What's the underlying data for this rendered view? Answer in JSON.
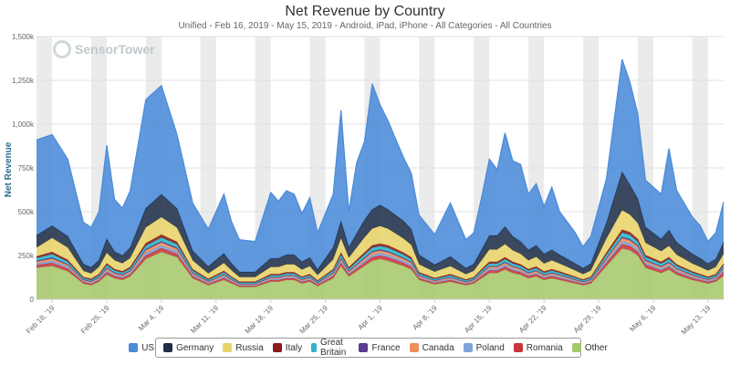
{
  "title": "Net Revenue by Country",
  "subtitle": "Unified - Feb 16, 2019 - May 15, 2019 - Android, iPad, iPhone - All Categories - All Countries",
  "brand": "SensorTower",
  "chart_data": {
    "type": "area",
    "stacked": true,
    "start_date": "2019-02-16",
    "end_date": "2019-05-15",
    "ylabel": "Net Revenue",
    "ylim": [
      0,
      1500000
    ],
    "yticks": [
      "0",
      "250k",
      "500k",
      "750k",
      "1,000k",
      "1,250k",
      "1,500k"
    ],
    "x_tick_labels": [
      "Feb 18, '19",
      "Feb 25, '19",
      "Mar 4, '19",
      "Mar 11, '19",
      "Mar 18, '19",
      "Mar 25, '19",
      "Apr 1, '19",
      "Apr 8, '19",
      "Apr 15, '19",
      "Apr 22, '19",
      "Apr 29, '19",
      "May 6, '19",
      "May 13, '19"
    ],
    "grid": true,
    "weekend_bands": true,
    "legend_position": "bottom",
    "keypoints": [
      {
        "d": 0,
        "t": 910000,
        "o": 180000,
        "ro": 15000,
        "po": 10000,
        "ca": 10000,
        "fr": 5000,
        "gb": 15000,
        "it": 10000,
        "ru": 50000,
        "ge": 70000
      },
      {
        "d": 2,
        "t": 940000,
        "o": 190000,
        "ro": 18000,
        "po": 12000,
        "ca": 12000,
        "fr": 6000,
        "gb": 20000,
        "it": 12000,
        "ru": 80000,
        "ge": 70000
      },
      {
        "d": 4,
        "t": 800000,
        "o": 160000,
        "ro": 15000,
        "po": 10000,
        "ca": 10000,
        "fr": 5000,
        "gb": 15000,
        "it": 10000,
        "ru": 70000,
        "ge": 65000
      },
      {
        "d": 6,
        "t": 440000,
        "o": 90000,
        "ro": 8000,
        "po": 6000,
        "ca": 6000,
        "fr": 3000,
        "gb": 8000,
        "it": 6000,
        "ru": 35000,
        "ge": 40000
      },
      {
        "d": 7,
        "t": 410000,
        "o": 80000,
        "ro": 8000,
        "po": 6000,
        "ca": 6000,
        "fr": 3000,
        "gb": 8000,
        "it": 6000,
        "ru": 30000,
        "ge": 35000
      },
      {
        "d": 8,
        "t": 500000,
        "o": 100000,
        "ro": 10000,
        "po": 7000,
        "ca": 7000,
        "fr": 3000,
        "gb": 10000,
        "it": 7000,
        "ru": 40000,
        "ge": 40000
      },
      {
        "d": 9,
        "t": 880000,
        "o": 140000,
        "ro": 15000,
        "po": 10000,
        "ca": 10000,
        "fr": 5000,
        "gb": 15000,
        "it": 10000,
        "ru": 60000,
        "ge": 80000
      },
      {
        "d": 10,
        "t": 570000,
        "o": 120000,
        "ro": 12000,
        "po": 8000,
        "ca": 8000,
        "fr": 4000,
        "gb": 12000,
        "it": 8000,
        "ru": 50000,
        "ge": 50000
      },
      {
        "d": 11,
        "t": 520000,
        "o": 110000,
        "ro": 11000,
        "po": 8000,
        "ca": 8000,
        "fr": 4000,
        "gb": 11000,
        "it": 8000,
        "ru": 45000,
        "ge": 45000
      },
      {
        "d": 12,
        "t": 620000,
        "o": 130000,
        "ro": 12000,
        "po": 9000,
        "ca": 9000,
        "fr": 4000,
        "gb": 12000,
        "it": 9000,
        "ru": 50000,
        "ge": 60000
      },
      {
        "d": 14,
        "t": 1140000,
        "o": 230000,
        "ro": 20000,
        "po": 15000,
        "ca": 15000,
        "fr": 6000,
        "gb": 20000,
        "it": 14000,
        "ru": 90000,
        "ge": 110000
      },
      {
        "d": 16,
        "t": 1220000,
        "o": 270000,
        "ro": 22000,
        "po": 16000,
        "ca": 16000,
        "fr": 7000,
        "gb": 22000,
        "it": 16000,
        "ru": 100000,
        "ge": 130000
      },
      {
        "d": 18,
        "t": 940000,
        "o": 240000,
        "ro": 20000,
        "po": 14000,
        "ca": 14000,
        "fr": 6000,
        "gb": 20000,
        "it": 14000,
        "ru": 80000,
        "ge": 110000
      },
      {
        "d": 20,
        "t": 550000,
        "o": 120000,
        "ro": 12000,
        "po": 8000,
        "ca": 8000,
        "fr": 4000,
        "gb": 12000,
        "it": 8000,
        "ru": 50000,
        "ge": 55000
      },
      {
        "d": 22,
        "t": 400000,
        "o": 80000,
        "ro": 8000,
        "po": 6000,
        "ca": 6000,
        "fr": 3000,
        "gb": 8000,
        "it": 6000,
        "ru": 30000,
        "ge": 40000
      },
      {
        "d": 24,
        "t": 600000,
        "o": 110000,
        "ro": 12000,
        "po": 8000,
        "ca": 8000,
        "fr": 4000,
        "gb": 12000,
        "it": 8000,
        "ru": 45000,
        "ge": 55000
      },
      {
        "d": 25,
        "t": 440000,
        "o": 90000,
        "ro": 9000,
        "po": 6000,
        "ca": 6000,
        "fr": 3000,
        "gb": 9000,
        "it": 6000,
        "ru": 35000,
        "ge": 40000
      },
      {
        "d": 26,
        "t": 340000,
        "o": 70000,
        "ro": 7000,
        "po": 5000,
        "ca": 5000,
        "fr": 2000,
        "gb": 7000,
        "it": 5000,
        "ru": 25000,
        "ge": 30000
      },
      {
        "d": 28,
        "t": 330000,
        "o": 70000,
        "ro": 7000,
        "po": 5000,
        "ca": 5000,
        "fr": 2000,
        "gb": 7000,
        "it": 5000,
        "ru": 25000,
        "ge": 30000
      },
      {
        "d": 30,
        "t": 610000,
        "o": 100000,
        "ro": 10000,
        "po": 7000,
        "ca": 7000,
        "fr": 3000,
        "gb": 10000,
        "it": 7000,
        "ru": 40000,
        "ge": 50000
      },
      {
        "d": 31,
        "t": 560000,
        "o": 100000,
        "ro": 10000,
        "po": 7000,
        "ca": 7000,
        "fr": 3000,
        "gb": 10000,
        "it": 7000,
        "ru": 40000,
        "ge": 50000
      },
      {
        "d": 32,
        "t": 620000,
        "o": 110000,
        "ro": 10000,
        "po": 7000,
        "ca": 7000,
        "fr": 3000,
        "gb": 10000,
        "it": 7000,
        "ru": 45000,
        "ge": 55000
      },
      {
        "d": 33,
        "t": 600000,
        "o": 110000,
        "ro": 10000,
        "po": 7000,
        "ca": 7000,
        "fr": 3000,
        "gb": 10000,
        "it": 7000,
        "ru": 45000,
        "ge": 55000
      },
      {
        "d": 34,
        "t": 490000,
        "o": 90000,
        "ro": 9000,
        "po": 6000,
        "ca": 6000,
        "fr": 3000,
        "gb": 9000,
        "it": 6000,
        "ru": 40000,
        "ge": 45000
      },
      {
        "d": 35,
        "t": 580000,
        "o": 100000,
        "ro": 10000,
        "po": 7000,
        "ca": 7000,
        "fr": 3000,
        "gb": 10000,
        "it": 7000,
        "ru": 45000,
        "ge": 50000
      },
      {
        "d": 36,
        "t": 380000,
        "o": 75000,
        "ro": 8000,
        "po": 5000,
        "ca": 5000,
        "fr": 2000,
        "gb": 8000,
        "it": 5000,
        "ru": 30000,
        "ge": 32000
      },
      {
        "d": 38,
        "t": 600000,
        "o": 120000,
        "ro": 12000,
        "po": 8000,
        "ca": 8000,
        "fr": 4000,
        "gb": 12000,
        "it": 8000,
        "ru": 55000,
        "ge": 70000
      },
      {
        "d": 39,
        "t": 1080000,
        "o": 190000,
        "ro": 18000,
        "po": 12000,
        "ca": 12000,
        "fr": 5000,
        "gb": 18000,
        "it": 12000,
        "ru": 80000,
        "ge": 100000
      },
      {
        "d": 40,
        "t": 500000,
        "o": 130000,
        "ro": 12000,
        "po": 8000,
        "ca": 8000,
        "fr": 4000,
        "gb": 12000,
        "it": 8000,
        "ru": 55000,
        "ge": 60000
      },
      {
        "d": 41,
        "t": 780000,
        "o": 160000,
        "ro": 15000,
        "po": 10000,
        "ca": 10000,
        "fr": 5000,
        "gb": 15000,
        "it": 10000,
        "ru": 70000,
        "ge": 80000
      },
      {
        "d": 42,
        "t": 900000,
        "o": 190000,
        "ro": 18000,
        "po": 12000,
        "ca": 12000,
        "fr": 5000,
        "gb": 18000,
        "it": 12000,
        "ru": 85000,
        "ge": 100000
      },
      {
        "d": 43,
        "t": 1230000,
        "o": 220000,
        "ro": 20000,
        "po": 14000,
        "ca": 14000,
        "fr": 6000,
        "gb": 20000,
        "it": 14000,
        "ru": 95000,
        "ge": 110000
      },
      {
        "d": 44,
        "t": 1110000,
        "o": 230000,
        "ro": 20000,
        "po": 14000,
        "ca": 14000,
        "fr": 6000,
        "gb": 20000,
        "it": 14000,
        "ru": 100000,
        "ge": 120000
      },
      {
        "d": 45,
        "t": 1020000,
        "o": 220000,
        "ro": 20000,
        "po": 14000,
        "ca": 14000,
        "fr": 6000,
        "gb": 20000,
        "it": 14000,
        "ru": 95000,
        "ge": 110000
      },
      {
        "d": 47,
        "t": 810000,
        "o": 190000,
        "ro": 18000,
        "po": 12000,
        "ca": 12000,
        "fr": 5000,
        "gb": 18000,
        "it": 12000,
        "ru": 80000,
        "ge": 100000
      },
      {
        "d": 48,
        "t": 720000,
        "o": 170000,
        "ro": 16000,
        "po": 11000,
        "ca": 11000,
        "fr": 5000,
        "gb": 16000,
        "it": 11000,
        "ru": 70000,
        "ge": 90000
      },
      {
        "d": 49,
        "t": 480000,
        "o": 110000,
        "ro": 10000,
        "po": 7000,
        "ca": 7000,
        "fr": 3000,
        "gb": 10000,
        "it": 7000,
        "ru": 45000,
        "ge": 55000
      },
      {
        "d": 51,
        "t": 370000,
        "o": 85000,
        "ro": 8000,
        "po": 6000,
        "ca": 6000,
        "fr": 3000,
        "gb": 8000,
        "it": 6000,
        "ru": 35000,
        "ge": 40000
      },
      {
        "d": 53,
        "t": 550000,
        "o": 100000,
        "ro": 10000,
        "po": 7000,
        "ca": 7000,
        "fr": 3000,
        "gb": 10000,
        "it": 7000,
        "ru": 45000,
        "ge": 55000
      },
      {
        "d": 55,
        "t": 340000,
        "o": 80000,
        "ro": 8000,
        "po": 5000,
        "ca": 5000,
        "fr": 2000,
        "gb": 8000,
        "it": 5000,
        "ru": 30000,
        "ge": 35000
      },
      {
        "d": 56,
        "t": 380000,
        "o": 90000,
        "ro": 8000,
        "po": 6000,
        "ca": 6000,
        "fr": 3000,
        "gb": 8000,
        "it": 6000,
        "ru": 35000,
        "ge": 40000
      },
      {
        "d": 57,
        "t": 580000,
        "o": 120000,
        "ro": 12000,
        "po": 8000,
        "ca": 8000,
        "fr": 4000,
        "gb": 12000,
        "it": 8000,
        "ru": 50000,
        "ge": 60000
      },
      {
        "d": 58,
        "t": 800000,
        "o": 150000,
        "ro": 15000,
        "po": 10000,
        "ca": 10000,
        "fr": 4000,
        "gb": 15000,
        "it": 10000,
        "ru": 70000,
        "ge": 80000
      },
      {
        "d": 59,
        "t": 740000,
        "o": 150000,
        "ro": 15000,
        "po": 10000,
        "ca": 10000,
        "fr": 4000,
        "gb": 15000,
        "it": 10000,
        "ru": 70000,
        "ge": 80000
      },
      {
        "d": 60,
        "t": 950000,
        "o": 170000,
        "ro": 16000,
        "po": 11000,
        "ca": 11000,
        "fr": 5000,
        "gb": 16000,
        "it": 11000,
        "ru": 75000,
        "ge": 100000
      },
      {
        "d": 61,
        "t": 790000,
        "o": 150000,
        "ro": 15000,
        "po": 10000,
        "ca": 10000,
        "fr": 4000,
        "gb": 15000,
        "it": 10000,
        "ru": 65000,
        "ge": 80000
      },
      {
        "d": 62,
        "t": 770000,
        "o": 140000,
        "ro": 14000,
        "po": 9000,
        "ca": 9000,
        "fr": 4000,
        "gb": 14000,
        "it": 9000,
        "ru": 60000,
        "ge": 70000
      },
      {
        "d": 63,
        "t": 600000,
        "o": 120000,
        "ro": 12000,
        "po": 8000,
        "ca": 8000,
        "fr": 4000,
        "gb": 12000,
        "it": 8000,
        "ru": 50000,
        "ge": 60000
      },
      {
        "d": 64,
        "t": 660000,
        "o": 130000,
        "ro": 13000,
        "po": 9000,
        "ca": 9000,
        "fr": 4000,
        "gb": 13000,
        "it": 9000,
        "ru": 55000,
        "ge": 65000
      },
      {
        "d": 65,
        "t": 530000,
        "o": 110000,
        "ro": 11000,
        "po": 8000,
        "ca": 8000,
        "fr": 3000,
        "gb": 11000,
        "it": 8000,
        "ru": 45000,
        "ge": 55000
      },
      {
        "d": 66,
        "t": 640000,
        "o": 120000,
        "ro": 12000,
        "po": 8000,
        "ca": 8000,
        "fr": 4000,
        "gb": 12000,
        "it": 8000,
        "ru": 50000,
        "ge": 60000
      },
      {
        "d": 67,
        "t": 500000,
        "o": 110000,
        "ro": 11000,
        "po": 8000,
        "ca": 8000,
        "fr": 3000,
        "gb": 11000,
        "it": 8000,
        "ru": 45000,
        "ge": 50000
      },
      {
        "d": 69,
        "t": 380000,
        "o": 90000,
        "ro": 9000,
        "po": 6000,
        "ca": 6000,
        "fr": 3000,
        "gb": 9000,
        "it": 6000,
        "ru": 35000,
        "ge": 40000
      },
      {
        "d": 70,
        "t": 300000,
        "o": 80000,
        "ro": 8000,
        "po": 5000,
        "ca": 5000,
        "fr": 2000,
        "gb": 8000,
        "it": 5000,
        "ru": 30000,
        "ge": 35000
      },
      {
        "d": 71,
        "t": 360000,
        "o": 90000,
        "ro": 9000,
        "po": 6000,
        "ca": 6000,
        "fr": 3000,
        "gb": 9000,
        "it": 6000,
        "ru": 35000,
        "ge": 40000
      },
      {
        "d": 73,
        "t": 690000,
        "o": 190000,
        "ro": 18000,
        "po": 12000,
        "ca": 12000,
        "fr": 5000,
        "gb": 18000,
        "it": 12000,
        "ru": 80000,
        "ge": 90000
      },
      {
        "d": 75,
        "t": 1370000,
        "o": 290000,
        "ro": 25000,
        "po": 17000,
        "ca": 17000,
        "fr": 7000,
        "gb": 25000,
        "it": 17000,
        "ru": 110000,
        "ge": 220000
      },
      {
        "d": 76,
        "t": 1240000,
        "o": 280000,
        "ro": 24000,
        "po": 16000,
        "ca": 16000,
        "fr": 7000,
        "gb": 24000,
        "it": 16000,
        "ru": 100000,
        "ge": 170000
      },
      {
        "d": 77,
        "t": 1060000,
        "o": 250000,
        "ro": 22000,
        "po": 15000,
        "ca": 15000,
        "fr": 6000,
        "gb": 22000,
        "it": 15000,
        "ru": 90000,
        "ge": 140000
      },
      {
        "d": 78,
        "t": 680000,
        "o": 180000,
        "ro": 17000,
        "po": 11000,
        "ca": 11000,
        "fr": 5000,
        "gb": 17000,
        "it": 11000,
        "ru": 70000,
        "ge": 90000
      },
      {
        "d": 80,
        "t": 600000,
        "o": 150000,
        "ro": 15000,
        "po": 10000,
        "ca": 10000,
        "fr": 4000,
        "gb": 15000,
        "it": 10000,
        "ru": 60000,
        "ge": 70000
      },
      {
        "d": 81,
        "t": 860000,
        "o": 170000,
        "ro": 16000,
        "po": 11000,
        "ca": 11000,
        "fr": 5000,
        "gb": 16000,
        "it": 11000,
        "ru": 65000,
        "ge": 90000
      },
      {
        "d": 82,
        "t": 620000,
        "o": 140000,
        "ro": 14000,
        "po": 9000,
        "ca": 9000,
        "fr": 4000,
        "gb": 14000,
        "it": 9000,
        "ru": 55000,
        "ge": 70000
      },
      {
        "d": 84,
        "t": 470000,
        "o": 110000,
        "ro": 11000,
        "po": 8000,
        "ca": 8000,
        "fr": 3000,
        "gb": 11000,
        "it": 8000,
        "ru": 45000,
        "ge": 55000
      },
      {
        "d": 85,
        "t": 420000,
        "o": 100000,
        "ro": 10000,
        "po": 7000,
        "ca": 7000,
        "fr": 3000,
        "gb": 10000,
        "it": 7000,
        "ru": 40000,
        "ge": 50000
      },
      {
        "d": 86,
        "t": 330000,
        "o": 90000,
        "ro": 9000,
        "po": 6000,
        "ca": 6000,
        "fr": 3000,
        "gb": 9000,
        "it": 6000,
        "ru": 35000,
        "ge": 40000
      },
      {
        "d": 87,
        "t": 380000,
        "o": 100000,
        "ro": 10000,
        "po": 7000,
        "ca": 7000,
        "fr": 3000,
        "gb": 10000,
        "it": 7000,
        "ru": 40000,
        "ge": 45000
      },
      {
        "d": 89,
        "t": 730000,
        "o": 170000,
        "ro": 35000,
        "po": 12000,
        "ca": 12000,
        "fr": 5000,
        "gb": 17000,
        "it": 12000,
        "ru": 70000,
        "ge": 90000
      },
      {
        "d": 90,
        "t": 900000,
        "o": 180000,
        "ro": 50000,
        "po": 13000,
        "ca": 13000,
        "fr": 6000,
        "gb": 18000,
        "it": 13000,
        "ru": 80000,
        "ge": 110000
      },
      {
        "d": 91,
        "t": 880000,
        "o": 175000,
        "ro": 55000,
        "po": 13000,
        "ca": 13000,
        "fr": 6000,
        "gb": 18000,
        "it": 13000,
        "ru": 80000,
        "ge": 100000
      },
      {
        "d": 92,
        "t": 790000,
        "o": 160000,
        "ro": 50000,
        "po": 12000,
        "ca": 12000,
        "fr": 5000,
        "gb": 16000,
        "it": 12000,
        "ru": 70000,
        "ge": 90000
      },
      {
        "d": 94,
        "t": 620000,
        "o": 140000,
        "ro": 40000,
        "po": 10000,
        "ca": 10000,
        "fr": 4000,
        "gb": 14000,
        "it": 10000,
        "ru": 60000,
        "ge": 80000
      },
      {
        "d": 95,
        "t": 570000,
        "o": 130000,
        "ro": 40000,
        "po": 10000,
        "ca": 10000,
        "fr": 4000,
        "gb": 13000,
        "it": 10000,
        "ru": 55000,
        "ge": 90000
      },
      {
        "d": 96,
        "t": 570000,
        "o": 130000,
        "ro": 40000,
        "po": 10000,
        "ca": 10000,
        "fr": 4000,
        "gb": 13000,
        "it": 10000,
        "ru": 55000,
        "ge": 90000
      }
    ],
    "series": [
      {
        "key": "o",
        "name": "Other",
        "color": "#a6c86c"
      },
      {
        "key": "ro",
        "name": "Romania",
        "color": "#c8363d"
      },
      {
        "key": "po",
        "name": "Poland",
        "color": "#7ea3d9"
      },
      {
        "key": "ca",
        "name": "Canada",
        "color": "#ef8f5a"
      },
      {
        "key": "fr",
        "name": "France",
        "color": "#5a3b8c"
      },
      {
        "key": "gb",
        "name": "Great Britain",
        "color": "#2cb5c8"
      },
      {
        "key": "it",
        "name": "Italy",
        "color": "#8b1a1a"
      },
      {
        "key": "ru",
        "name": "Russia",
        "color": "#e8d36a"
      },
      {
        "key": "ge",
        "name": "Germany",
        "color": "#1f2f4a"
      },
      {
        "key": "us",
        "name": "US",
        "color": "#4a8bd8"
      }
    ],
    "legend_order": [
      "US",
      "Germany",
      "Russia",
      "Italy",
      "Great Britain",
      "France",
      "Canada",
      "Poland",
      "Romania",
      "Other"
    ]
  }
}
